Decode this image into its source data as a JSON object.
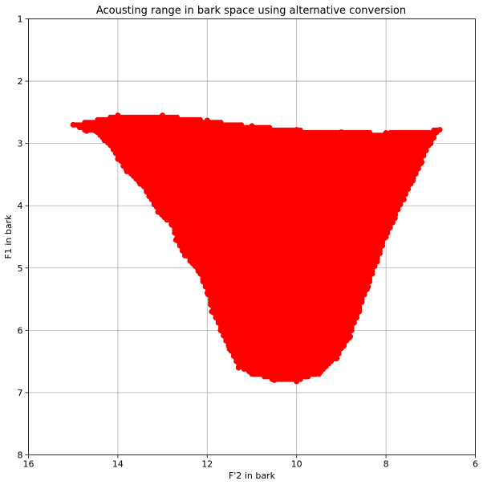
{
  "chart_data": {
    "type": "scatter",
    "title": "Acousting range in bark space using alternative conversion",
    "xlabel": "F'2 in bark",
    "ylabel": "F1 in bark",
    "xlim": [
      16,
      6
    ],
    "ylim": [
      8,
      1
    ],
    "x_axis_inverted": true,
    "y_axis_inverted": true,
    "grid": true,
    "xticks": [
      "16",
      "14",
      "12",
      "10",
      "8",
      "6"
    ],
    "yticks": [
      "1",
      "2",
      "3",
      "4",
      "5",
      "6",
      "7",
      "8"
    ],
    "marker_color": "#ff0000",
    "marker": "filled-circle",
    "series": [
      {
        "points": [
          [
            15.0,
            2.7
          ],
          [
            14.7,
            2.8
          ],
          [
            14.5,
            2.8
          ],
          [
            14.3,
            2.95
          ],
          [
            14.1,
            3.1
          ],
          [
            14.0,
            3.25
          ],
          [
            13.8,
            3.45
          ],
          [
            13.5,
            3.65
          ],
          [
            13.3,
            3.85
          ],
          [
            13.1,
            4.1
          ],
          [
            12.8,
            4.3
          ],
          [
            12.7,
            4.55
          ],
          [
            12.5,
            4.8
          ],
          [
            12.2,
            5.05
          ],
          [
            12.0,
            5.4
          ],
          [
            11.9,
            5.7
          ],
          [
            11.7,
            6.0
          ],
          [
            11.5,
            6.3
          ],
          [
            11.3,
            6.6
          ],
          [
            11.0,
            6.7
          ],
          [
            10.5,
            6.8
          ],
          [
            10.0,
            6.82
          ],
          [
            9.5,
            6.7
          ],
          [
            9.1,
            6.45
          ],
          [
            8.8,
            6.1
          ],
          [
            8.6,
            5.7
          ],
          [
            8.4,
            5.3
          ],
          [
            8.2,
            4.9
          ],
          [
            8.0,
            4.5
          ],
          [
            7.8,
            4.2
          ],
          [
            7.6,
            3.9
          ],
          [
            7.4,
            3.6
          ],
          [
            7.2,
            3.3
          ],
          [
            7.0,
            3.0
          ],
          [
            6.8,
            2.78
          ],
          [
            8.0,
            2.83
          ],
          [
            9.0,
            2.82
          ],
          [
            10.0,
            2.78
          ],
          [
            11.0,
            2.72
          ],
          [
            12.0,
            2.63
          ],
          [
            13.0,
            2.55
          ],
          [
            14.0,
            2.55
          ]
        ]
      }
    ]
  }
}
